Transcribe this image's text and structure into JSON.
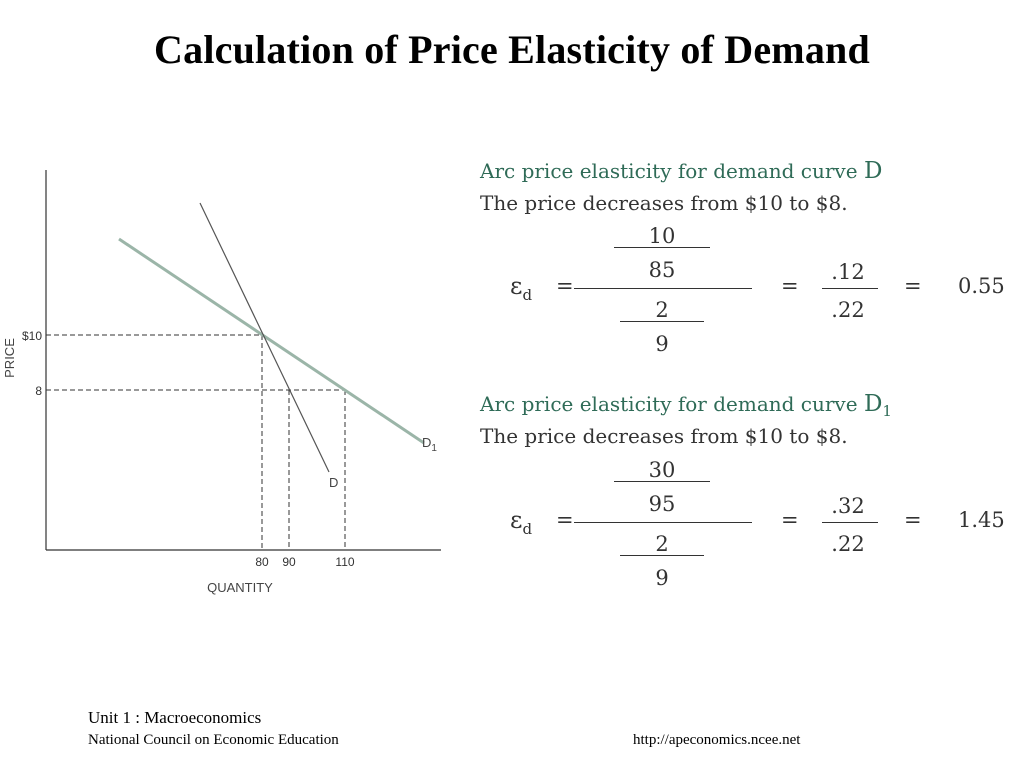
{
  "title": "Calculation of Price Elasticity of Demand",
  "graph": {
    "y_axis_label": "PRICE",
    "x_axis_label": "QUANTITY",
    "price_ticks": [
      "$10",
      "8"
    ],
    "quantity_ticks": [
      "80",
      "90",
      "110"
    ],
    "curve_d_label": "D",
    "curve_d1_label": "D",
    "curve_d1_subscript": "1",
    "colors": {
      "curve_d": "#555555",
      "curve_d1": "#9bb5a8",
      "axis": "#333333"
    }
  },
  "calc1": {
    "heading": "Arc price elasticity for demand curve ",
    "curve": "D",
    "subscript": "",
    "statement": "The price decreases from $10 to $8.",
    "top_num": "10",
    "top_den": "85",
    "bot_num": "2",
    "bot_den": "9",
    "mid_num": ".12",
    "mid_den": ".22",
    "equals": "=",
    "eps": "ε",
    "eps_sub": "d",
    "result": "0.55"
  },
  "calc2": {
    "heading": "Arc price elasticity for demand curve ",
    "curve": "D",
    "subscript": "1",
    "statement": "The price decreases from $10 to $8.",
    "top_num": "30",
    "top_den": "95",
    "bot_num": "2",
    "bot_den": "9",
    "mid_num": ".32",
    "mid_den": ".22",
    "equals": "=",
    "eps": "ε",
    "eps_sub": "d",
    "result": "1.45"
  },
  "footer": {
    "unit": "Unit 1 : Macroeconomics",
    "org": "National Council on Economic Education",
    "url": "http://apeconomics.ncee.net"
  },
  "heading_color": "#2f6b57"
}
